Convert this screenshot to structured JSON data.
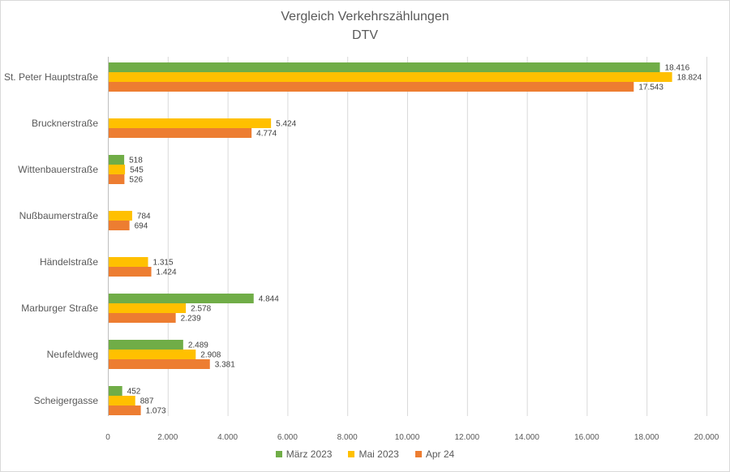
{
  "chart_data": {
    "type": "bar",
    "orientation": "horizontal",
    "title": "Vergleich Verkehrszählungen",
    "subtitle": "DTV",
    "categories": [
      "St. Peter Hauptstraße",
      "Brucknerstraße",
      "Wittenbauerstraße",
      "Nußbaumerstraße",
      "Händelstraße",
      "Marburger Straße",
      "Neufeldweg",
      "Scheigergasse"
    ],
    "series": [
      {
        "name": "März 2023",
        "color": "#70ad47",
        "values": [
          18416,
          null,
          518,
          null,
          null,
          4844,
          2489,
          452
        ],
        "labels": [
          "18.416",
          "",
          "518",
          "",
          "",
          "4.844",
          "2.489",
          "452"
        ]
      },
      {
        "name": "Mai 2023",
        "color": "#ffc000",
        "values": [
          18824,
          5424,
          545,
          784,
          1315,
          2578,
          2908,
          887
        ],
        "labels": [
          "18.824",
          "5.424",
          "545",
          "784",
          "1.315",
          "2.578",
          "2.908",
          "887"
        ]
      },
      {
        "name": "Apr 24",
        "color": "#ed7d31",
        "values": [
          17543,
          4774,
          526,
          694,
          1424,
          2239,
          3381,
          1073
        ],
        "labels": [
          "17.543",
          "4.774",
          "526",
          "694",
          "1.424",
          "2.239",
          "3.381",
          "1.073"
        ]
      }
    ],
    "xlim": [
      0,
      20000
    ],
    "xticks": [
      0,
      2000,
      4000,
      6000,
      8000,
      10000,
      12000,
      14000,
      16000,
      18000,
      20000
    ],
    "xtick_labels": [
      "0",
      "2.000",
      "4.000",
      "6.000",
      "8.000",
      "10.000",
      "12.000",
      "14.000",
      "16.000",
      "18.000",
      "20.000"
    ],
    "grid": "vertical",
    "legend_position": "bottom"
  }
}
